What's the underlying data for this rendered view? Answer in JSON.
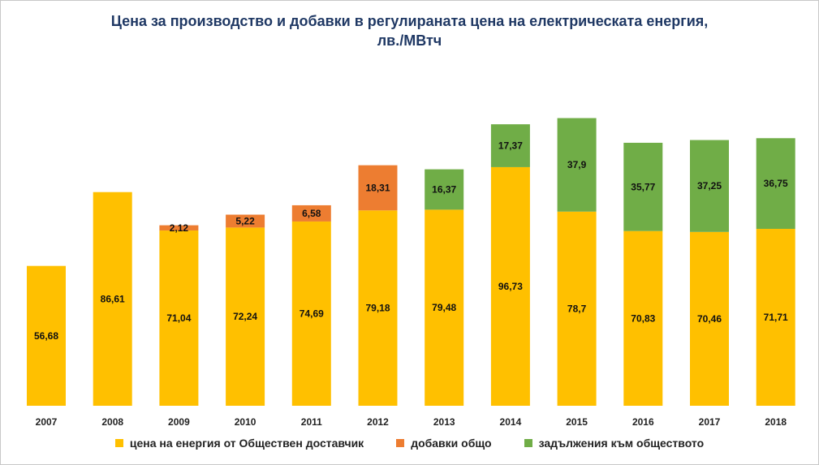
{
  "chart_data": {
    "type": "bar",
    "stacked": true,
    "title": "Цена за производство и добавки в регулираната цена на електрическата енергия,",
    "subtitle": "лв./МВтч",
    "categories": [
      "2007",
      "2008",
      "2009",
      "2010",
      "2011",
      "2012",
      "2013",
      "2014",
      "2015",
      "2016",
      "2017",
      "2018"
    ],
    "series": [
      {
        "name": "цена на енергия от Обществен доставчик",
        "color": "#ffc000",
        "values": [
          56.68,
          86.61,
          71.04,
          72.24,
          74.69,
          79.18,
          79.48,
          96.73,
          78.7,
          70.83,
          70.46,
          71.71
        ],
        "labels": [
          "56,68",
          "86,61",
          "71,04",
          "72,24",
          "74,69",
          "79,18",
          "79,48",
          "96,73",
          "78,7",
          "70,83",
          "70,46",
          "71,71"
        ]
      },
      {
        "name": "добавки общо",
        "color": "#ed7d31",
        "values": [
          null,
          null,
          2.12,
          5.22,
          6.58,
          18.31,
          null,
          null,
          null,
          null,
          null,
          null
        ],
        "labels": [
          null,
          null,
          "2,12",
          "5,22",
          "6,58",
          "18,31",
          null,
          null,
          null,
          null,
          null,
          null
        ]
      },
      {
        "name": "задължения към обществото",
        "color": "#70ad47",
        "values": [
          null,
          null,
          null,
          null,
          null,
          null,
          16.37,
          17.37,
          37.9,
          35.77,
          37.25,
          36.75
        ],
        "labels": [
          null,
          null,
          null,
          null,
          null,
          null,
          "16,37",
          "17,37",
          "37,9",
          "35,77",
          "37,25",
          "36,75"
        ]
      }
    ],
    "ylim": [
      0,
      120
    ],
    "grid": false,
    "legend_position": "bottom"
  }
}
